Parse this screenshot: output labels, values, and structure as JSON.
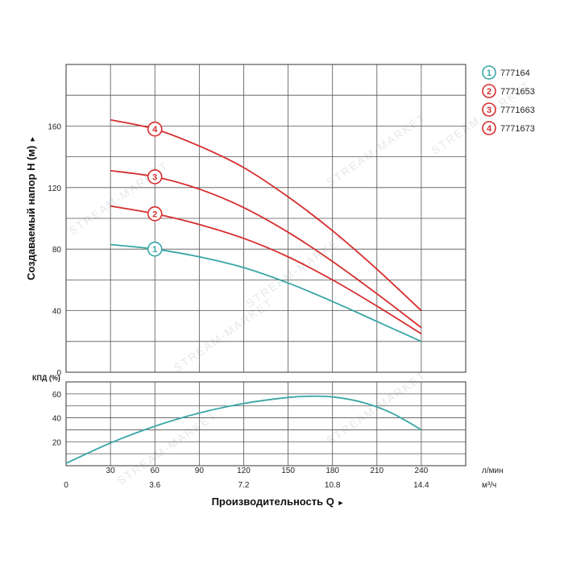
{
  "chart_data": [
    {
      "type": "line",
      "ylabel": "Создаваемый напор H (м)",
      "ylim": [
        0,
        160
      ],
      "yticks": [
        "0",
        "40",
        "80",
        "120",
        "160"
      ],
      "xlim": [
        0,
        240
      ],
      "grid": true,
      "legend_position": "right",
      "series": [
        {
          "name": "777164",
          "marker": "1",
          "color": "#3aa6a6",
          "x": [
            30,
            60,
            90,
            120,
            150,
            180,
            210,
            240
          ],
          "y": [
            83,
            80,
            75,
            68,
            58,
            46,
            33,
            20
          ]
        },
        {
          "name": "7771653",
          "marker": "2",
          "color": "#d62e2e",
          "x": [
            30,
            60,
            90,
            120,
            150,
            180,
            210,
            240
          ],
          "y": [
            108,
            103,
            96,
            87,
            75,
            60,
            43,
            25
          ]
        },
        {
          "name": "7771663",
          "marker": "3",
          "color": "#d62e2e",
          "x": [
            30,
            60,
            90,
            120,
            150,
            180,
            210,
            240
          ],
          "y": [
            131,
            127,
            119,
            107,
            91,
            72,
            51,
            29
          ]
        },
        {
          "name": "7771673",
          "marker": "4",
          "color": "#d62e2e",
          "x": [
            30,
            60,
            90,
            120,
            150,
            180,
            210,
            240
          ],
          "y": [
            164,
            158,
            147,
            133,
            114,
            92,
            67,
            40
          ]
        }
      ],
      "marker_x": 60
    },
    {
      "type": "line",
      "ylabel": "КПД (%)",
      "ylim": [
        0,
        70
      ],
      "yticks": [
        "20",
        "40",
        "60"
      ],
      "xlim": [
        0,
        240
      ],
      "xticks_primary": [
        "0",
        "30",
        "60",
        "90",
        "120",
        "150",
        "180",
        "210",
        "240"
      ],
      "xticks_primary_unit": "л/мин",
      "xticks_secondary": [
        "0",
        "3.6",
        "7.2",
        "10.8",
        "14.4"
      ],
      "xticks_secondary_unit": "м³/ч",
      "xlabel": "Производительность Q",
      "grid": true,
      "series": [
        {
          "color": "#3aa6a6",
          "x": [
            0,
            30,
            60,
            90,
            120,
            150,
            165,
            180,
            200,
            220,
            240
          ],
          "y": [
            2,
            19,
            33,
            44,
            52,
            57,
            58,
            57.5,
            53,
            44,
            30
          ]
        }
      ]
    }
  ],
  "legend": [
    {
      "marker": "1",
      "label": "777164",
      "color": "#3aa6a6"
    },
    {
      "marker": "2",
      "label": "7771653",
      "color": "#d62e2e"
    },
    {
      "marker": "3",
      "label": "7771663",
      "color": "#d62e2e"
    },
    {
      "marker": "4",
      "label": "7771673",
      "color": "#d62e2e"
    }
  ],
  "arrow_glyph": "►",
  "watermark_text": "STREAM-MARKET"
}
